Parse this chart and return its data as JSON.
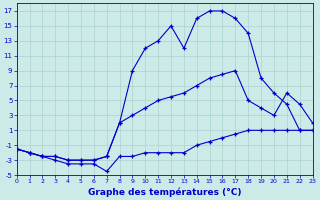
{
  "title": "Graphe des températures (°C)",
  "background_color": "#cceae7",
  "line_color": "#0000cc",
  "grid_color": "#aad4d0",
  "curve1_x": [
    0,
    1,
    2,
    3,
    4,
    5,
    6,
    7,
    8,
    9,
    10,
    11,
    12,
    13,
    14,
    15,
    16,
    17,
    18,
    19,
    20,
    21,
    22,
    23
  ],
  "curve1_y": [
    -1.5,
    -2,
    -2.5,
    -2.5,
    -3,
    -3,
    -3,
    -2.5,
    2,
    9,
    12,
    13,
    15,
    12,
    16,
    17,
    17,
    16,
    14,
    8,
    6,
    4.5,
    1,
    1
  ],
  "curve2_x": [
    0,
    1,
    2,
    3,
    4,
    5,
    6,
    7,
    8,
    9,
    10,
    11,
    12,
    13,
    14,
    15,
    16,
    17,
    18,
    19,
    20,
    21,
    22,
    23
  ],
  "curve2_y": [
    -1.5,
    -2,
    -2.5,
    -3,
    -3.5,
    -3.5,
    -3.5,
    -4.5,
    -2.5,
    -2.5,
    -2,
    -2,
    -2,
    -2,
    -1,
    -0.5,
    0,
    0.5,
    1,
    1,
    1,
    1,
    1,
    1
  ],
  "curve3_x": [
    0,
    1,
    2,
    3,
    4,
    5,
    6,
    7,
    8,
    9,
    10,
    11,
    12,
    13,
    14,
    15,
    16,
    17,
    18,
    19,
    20,
    21,
    22,
    23
  ],
  "curve3_y": [
    -1.5,
    -2,
    -2.5,
    -2.5,
    -3,
    -3,
    -3,
    -2.5,
    2,
    3,
    4,
    5,
    5.5,
    6,
    7,
    8,
    8.5,
    9,
    5,
    4,
    3,
    6,
    4.5,
    2
  ],
  "ylim": [
    -5,
    18
  ],
  "yticks": [
    -5,
    -3,
    -1,
    1,
    3,
    5,
    7,
    9,
    11,
    13,
    15,
    17
  ],
  "xlim": [
    0,
    23
  ],
  "xticks": [
    0,
    1,
    2,
    3,
    4,
    5,
    6,
    7,
    8,
    9,
    10,
    11,
    12,
    13,
    14,
    15,
    16,
    17,
    18,
    19,
    20,
    21,
    22,
    23
  ]
}
